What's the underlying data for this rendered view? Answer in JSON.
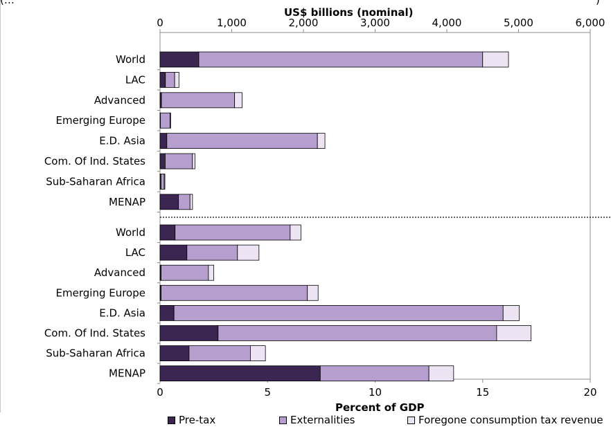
{
  "header_fragment": "(…",
  "header_fragment_right": ")",
  "colors": {
    "pretax": "#3b2551",
    "externalities": "#b69fcf",
    "foregone": "#ece4f2",
    "axis": "#8c8c8c",
    "divider": "#000000"
  },
  "chart_data": [
    {
      "type": "bar",
      "orientation": "horizontal",
      "stacked": true,
      "xlabel": "US$ billions (nominal)",
      "xlim": [
        0,
        6000
      ],
      "xticks": [
        "0",
        "1,000",
        "2,000",
        "3,000",
        "4,000",
        "5,000",
        "6,000"
      ],
      "categories": [
        "World",
        "LAC",
        "Advanced",
        "Emerging Europe",
        "E.D. Asia",
        "Com. Of Ind. States",
        "Sub-Saharan Africa",
        "MENAP"
      ],
      "series": [
        {
          "name": "Pre-tax",
          "values": [
            541,
            75,
            20,
            6,
            95,
            72,
            14,
            258
          ]
        },
        {
          "name": "Externalities",
          "values": [
            3959,
            129,
            1020,
            134,
            2100,
            380,
            44,
            160
          ]
        },
        {
          "name": "Foregone consumption tax revenue",
          "values": [
            360,
            60,
            105,
            6,
            105,
            35,
            10,
            35
          ]
        }
      ]
    },
    {
      "type": "bar",
      "orientation": "horizontal",
      "stacked": true,
      "xlabel": "Percent of GDP",
      "xlim": [
        0,
        20
      ],
      "xticks": [
        "0",
        "5",
        "10",
        "15",
        "20"
      ],
      "categories": [
        "World",
        "LAC",
        "Advanced",
        "Emerging Europe",
        "E.D. Asia",
        "Com. Of Ind. States",
        "Sub-Saharan Africa",
        "MENAP"
      ],
      "series": [
        {
          "name": "Pre-tax",
          "values": [
            0.7,
            1.25,
            0.05,
            0.05,
            0.65,
            2.7,
            1.35,
            7.45
          ]
        },
        {
          "name": "Externalities",
          "values": [
            5.35,
            2.35,
            2.2,
            6.8,
            15.3,
            12.95,
            2.85,
            5.05
          ]
        },
        {
          "name": "Foregone consumption tax revenue",
          "values": [
            0.5,
            1.0,
            0.25,
            0.5,
            0.75,
            1.6,
            0.7,
            1.15
          ]
        }
      ]
    }
  ],
  "legend": [
    {
      "key": "pretax",
      "label": "Pre-tax"
    },
    {
      "key": "externalities",
      "label": "Externalities"
    },
    {
      "key": "foregone",
      "label": "Foregone consumption tax revenue"
    }
  ]
}
